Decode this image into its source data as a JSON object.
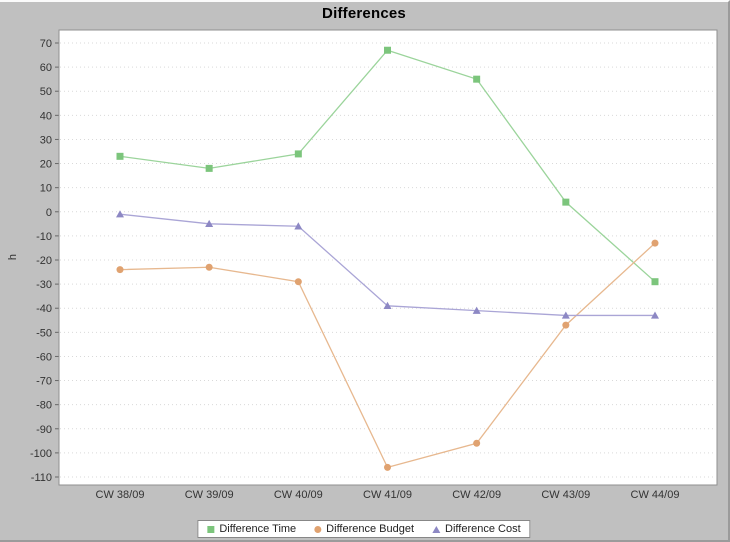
{
  "window": {
    "background_color": "#c0c0c0"
  },
  "chart_data": {
    "type": "line",
    "title": "Differences",
    "xlabel": "",
    "ylabel": "h",
    "categories": [
      "CW 38/09",
      "CW 39/09",
      "CW 40/09",
      "CW 41/09",
      "CW 42/09",
      "CW 43/09",
      "CW 44/09"
    ],
    "series": [
      {
        "name": "Difference Time",
        "marker": "square",
        "line_color": "#9bd49b",
        "marker_color": "#7cc57c",
        "values": [
          23,
          18,
          24,
          67,
          55,
          4,
          -29
        ]
      },
      {
        "name": "Difference Budget",
        "marker": "circle",
        "line_color": "#e7b88f",
        "marker_color": "#e0a270",
        "values": [
          -24,
          -23,
          -29,
          -106,
          -96,
          -47,
          -13
        ]
      },
      {
        "name": "Difference Cost",
        "marker": "triangle",
        "line_color": "#aaa5d6",
        "marker_color": "#8d88c4",
        "values": [
          -1,
          -5,
          -6,
          -39,
          -41,
          -43,
          -43
        ]
      }
    ],
    "ylim": [
      -110,
      70
    ],
    "yticks": [
      70,
      60,
      50,
      40,
      30,
      20,
      10,
      0,
      -10,
      -20,
      -30,
      -40,
      -50,
      -60,
      -70,
      -80,
      -90,
      -100,
      -110
    ],
    "grid": "dotted-horizontal",
    "grid_color": "#d9d9d9",
    "plot_background": "#ffffff",
    "plot_border_color": "#8f8f8f",
    "tick_label_color": "#333333",
    "legend_position": "bottom"
  }
}
